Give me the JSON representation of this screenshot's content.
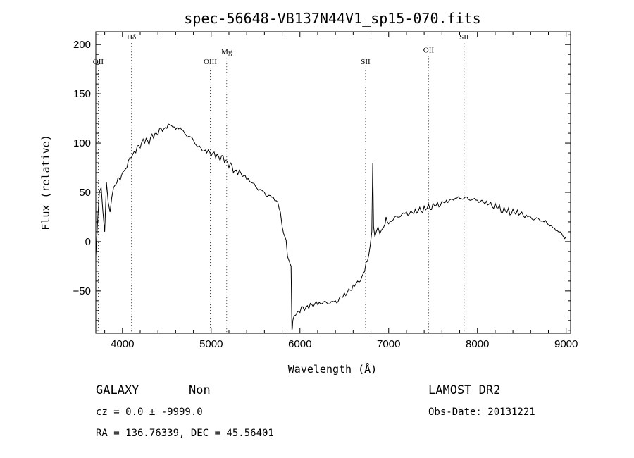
{
  "chart_data": {
    "type": "line",
    "title": "spec-56648-VB137N44V1_sp15-070.fits",
    "xlabel": "Wavelength (Å)",
    "ylabel": "Flux (relative)",
    "xlim": [
      3700,
      9050
    ],
    "ylim": [
      -93,
      213
    ],
    "x_ticks": [
      4000,
      5000,
      6000,
      7000,
      8000,
      9000
    ],
    "x_tick_labels": [
      "4000",
      "5000",
      "6000",
      "7000",
      "8000",
      "9000"
    ],
    "y_ticks": [
      -50,
      0,
      50,
      100,
      150,
      200
    ],
    "y_tick_labels": [
      "−50",
      "0",
      "50",
      "100",
      "150",
      "200"
    ],
    "grid": false,
    "line_color": "#000000",
    "line_markers": [
      {
        "label": "OII",
        "x": 3727,
        "label_y": 180
      },
      {
        "label": "Hδ",
        "x": 4102,
        "label_y": 205
      },
      {
        "label": "OIII",
        "x": 4990,
        "label_y": 180
      },
      {
        "label": "Mg",
        "x": 5175,
        "label_y": 190
      },
      {
        "label": "SII",
        "x": 6740,
        "label_y": 180
      },
      {
        "label": "OII",
        "x": 7450,
        "label_y": 192
      },
      {
        "label": "SII",
        "x": 7850,
        "label_y": 205
      }
    ],
    "series": [
      {
        "x": [
          3700,
          3720,
          3740,
          3760,
          3780,
          3800,
          3820,
          3840,
          3860,
          3880,
          3900,
          3925,
          3950,
          3975,
          4000,
          4050,
          4100,
          4150,
          4200,
          4250,
          4300,
          4350,
          4400,
          4450,
          4500,
          4550,
          4600,
          4650,
          4700,
          4750,
          4800,
          4850,
          4900,
          4950,
          5000,
          5050,
          5100,
          5150,
          5200,
          5250,
          5300,
          5350,
          5400,
          5450,
          5500,
          5550,
          5600,
          5650,
          5700,
          5750,
          5780,
          5800,
          5830,
          5860,
          5880,
          5900,
          5910,
          5915,
          5920,
          5935,
          5950,
          6000,
          6050,
          6100,
          6150,
          6200,
          6250,
          6300,
          6350,
          6400,
          6450,
          6500,
          6550,
          6600,
          6650,
          6700,
          6730,
          6760,
          6790,
          6810,
          6820,
          6830,
          6845,
          6860,
          6880,
          6900,
          6920,
          6940,
          6960,
          6970,
          6985,
          7000,
          7050,
          7100,
          7150,
          7200,
          7250,
          7300,
          7350,
          7400,
          7450,
          7500,
          7550,
          7600,
          7650,
          7700,
          7750,
          7800,
          7850,
          7900,
          7950,
          8000,
          8050,
          8100,
          8150,
          8200,
          8250,
          8300,
          8350,
          8400,
          8450,
          8500,
          8550,
          8600,
          8650,
          8700,
          8750,
          8800,
          8850,
          8900,
          8950,
          9000
        ],
        "values": [
          -15,
          20,
          50,
          55,
          30,
          10,
          60,
          40,
          30,
          45,
          55,
          58,
          65,
          62,
          70,
          75,
          85,
          90,
          95,
          100,
          98,
          105,
          108,
          112,
          115,
          118,
          114,
          116,
          110,
          107,
          103,
          96,
          92,
          90,
          87,
          85,
          82,
          80,
          75,
          70,
          68,
          66,
          63,
          60,
          56,
          53,
          50,
          47,
          45,
          40,
          30,
          15,
          5,
          -15,
          -20,
          -25,
          -90,
          -88,
          -80,
          -75,
          -75,
          -72,
          -70,
          -68,
          -66,
          -64,
          -63,
          -62,
          -61,
          -60,
          -56,
          -52,
          -48,
          -44,
          -40,
          -35,
          -30,
          -20,
          -5,
          10,
          80,
          15,
          5,
          10,
          15,
          8,
          12,
          14,
          18,
          25,
          20,
          18,
          22,
          25,
          28,
          30,
          31,
          33,
          35,
          36,
          38,
          39,
          40,
          41,
          42,
          43,
          44,
          44,
          44,
          43,
          43,
          42,
          42,
          41,
          40,
          39,
          37,
          35,
          34,
          33,
          32,
          30,
          27,
          25,
          23,
          22,
          20,
          17,
          14,
          11,
          8,
          5
        ]
      }
    ]
  },
  "info": {
    "object_type": "GALAXY",
    "subclass": "Non",
    "survey": "LAMOST DR2",
    "redshift_line": "cz = 0.0 ± -9999.0",
    "obs_date": "Obs-Date: 20131221",
    "coords": "RA = 136.76339, DEC =  45.56401"
  }
}
